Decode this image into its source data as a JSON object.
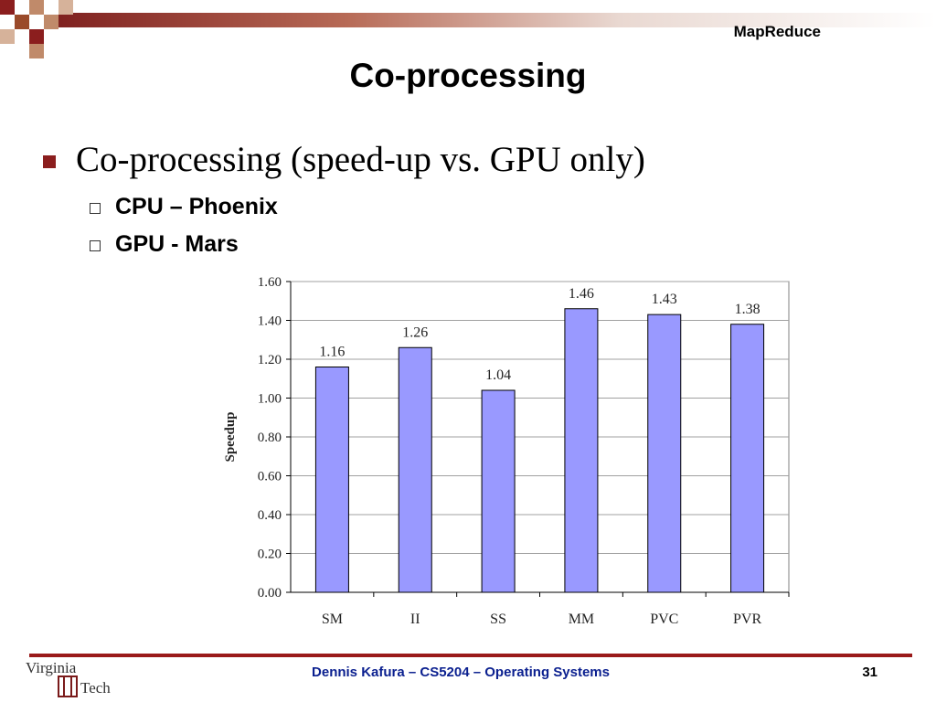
{
  "header": {
    "label": "MapReduce"
  },
  "title": "Co-processing",
  "bullets": {
    "main": "Co-processing (speed-up vs. GPU only)",
    "sub": [
      "CPU – Phoenix",
      "GPU - Mars"
    ]
  },
  "chart_data": {
    "type": "bar",
    "categories": [
      "SM",
      "II",
      "SS",
      "MM",
      "PVC",
      "PVR"
    ],
    "values": [
      1.16,
      1.26,
      1.04,
      1.46,
      1.43,
      1.38
    ],
    "value_labels": [
      "1.16",
      "1.26",
      "1.04",
      "1.46",
      "1.43",
      "1.38"
    ],
    "ylabel": "Speedup",
    "xlabel": "",
    "ylim": [
      0,
      1.6
    ],
    "yticks": [
      "0.00",
      "0.20",
      "0.40",
      "0.60",
      "0.80",
      "1.00",
      "1.20",
      "1.40",
      "1.60"
    ],
    "grid": true,
    "bar_color": "#9999ff"
  },
  "footer": {
    "logo_line1": "Virginia",
    "logo_line2": "Tech",
    "text": "Dennis Kafura – CS5204 – Operating Systems",
    "page": "31"
  },
  "colors": {
    "accent": "#8b1e1e",
    "footer_text": "#0a1f8f"
  }
}
